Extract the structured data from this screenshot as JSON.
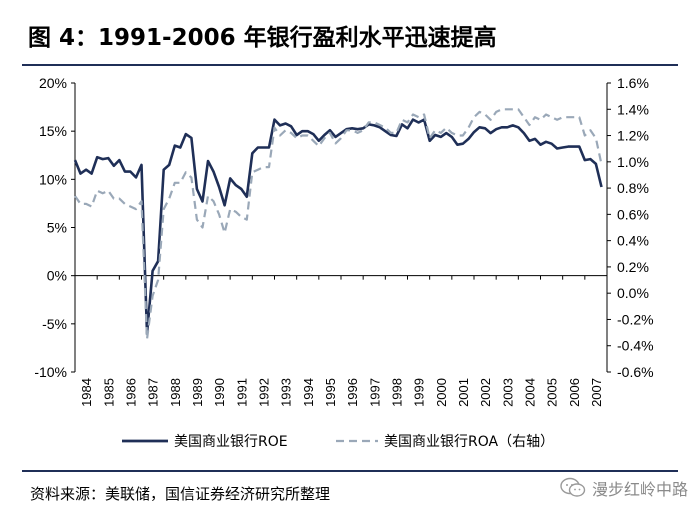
{
  "title": "图 4：1991-2006 年银行盈利水平迅速提高",
  "source": "资料来源：美联储，国信证券经济研究所整理",
  "watermark": "漫步红岭中路",
  "colors": {
    "roe": "#1f2f57",
    "roa": "#9aa8b8",
    "rule": "#1f2f57"
  },
  "chart_data": {
    "type": "line",
    "title": "",
    "x_label": "",
    "x_tick_labels": [
      "1984",
      "1985",
      "1986",
      "1987",
      "1988",
      "1989",
      "1990",
      "1991",
      "1992",
      "1993",
      "1994",
      "1995",
      "1996",
      "1997",
      "1998",
      "1999",
      "2000",
      "2001",
      "2002",
      "2003",
      "2004",
      "2005",
      "2006",
      "2007"
    ],
    "x_range": [
      1984,
      2008
    ],
    "y_left": {
      "range": [
        -10,
        20
      ],
      "step": 5,
      "tick_labels": [
        "20%",
        "15%",
        "10%",
        "5%",
        "0%",
        "-5%",
        "-10%"
      ]
    },
    "y_right": {
      "range": [
        -0.6,
        1.6
      ],
      "step": 0.2,
      "tick_labels": [
        "1.6%",
        "1.4%",
        "1.2%",
        "1.0%",
        "0.8%",
        "0.6%",
        "0.4%",
        "0.2%",
        "0.0%",
        "-0.2%",
        "-0.4%",
        "-0.6%"
      ]
    },
    "legend": {
      "position": "bottom"
    },
    "series": [
      {
        "name": "美国商业银行ROE",
        "axis": "left",
        "style": "solid",
        "x": [
          1984.0,
          1984.25,
          1984.5,
          1984.75,
          1985.0,
          1985.25,
          1985.5,
          1985.75,
          1986.0,
          1986.25,
          1986.5,
          1986.75,
          1987.0,
          1987.25,
          1987.5,
          1987.75,
          1988.0,
          1988.25,
          1988.5,
          1988.75,
          1989.0,
          1989.25,
          1989.5,
          1989.75,
          1990.0,
          1990.25,
          1990.5,
          1990.75,
          1991.0,
          1991.25,
          1991.5,
          1991.75,
          1992.0,
          1992.25,
          1992.5,
          1992.75,
          1993.0,
          1993.25,
          1993.5,
          1993.75,
          1994.0,
          1994.25,
          1994.5,
          1994.75,
          1995.0,
          1995.25,
          1995.5,
          1995.75,
          1996.0,
          1996.25,
          1996.5,
          1996.75,
          1997.0,
          1997.25,
          1997.5,
          1997.75,
          1998.0,
          1998.25,
          1998.5,
          1998.75,
          1999.0,
          1999.25,
          1999.5,
          1999.75,
          2000.0,
          2000.25,
          2000.5,
          2000.75,
          2001.0,
          2001.25,
          2001.5,
          2001.75,
          2002.0,
          2002.25,
          2002.5,
          2002.75,
          2003.0,
          2003.25,
          2003.5,
          2003.75,
          2004.0,
          2004.25,
          2004.5,
          2004.75,
          2005.0,
          2005.25,
          2005.5,
          2005.75,
          2006.0,
          2006.25,
          2006.5,
          2006.75,
          2007.0,
          2007.25,
          2007.5,
          2007.75
        ],
        "values": [
          12.0,
          10.6,
          11.0,
          10.6,
          12.3,
          12.1,
          12.2,
          11.4,
          12.0,
          10.8,
          10.8,
          10.2,
          11.5,
          -6.0,
          0.5,
          1.5,
          11.0,
          11.5,
          13.5,
          13.3,
          14.7,
          14.3,
          9.0,
          7.7,
          11.9,
          10.8,
          9.2,
          7.3,
          10.1,
          9.4,
          9.0,
          8.2,
          12.7,
          13.3,
          13.3,
          13.3,
          16.2,
          15.6,
          15.8,
          15.5,
          14.6,
          15.0,
          15.0,
          14.7,
          14.0,
          14.6,
          15.1,
          14.4,
          14.8,
          15.2,
          15.3,
          15.2,
          15.3,
          15.7,
          15.6,
          15.4,
          15.0,
          14.6,
          14.5,
          15.7,
          15.3,
          16.2,
          15.9,
          16.2,
          14.0,
          14.6,
          14.4,
          14.8,
          14.4,
          13.6,
          13.7,
          14.2,
          14.9,
          15.4,
          15.3,
          14.8,
          15.2,
          15.4,
          15.4,
          15.6,
          15.4,
          14.8,
          14.0,
          14.2,
          13.6,
          13.9,
          13.7,
          13.2,
          13.3,
          13.4,
          13.4,
          13.4,
          12.0,
          12.1,
          11.6,
          9.2
        ]
      },
      {
        "name": "美国商业银行ROA（右轴）",
        "axis": "right",
        "style": "dashed",
        "x": [
          1984.0,
          1984.25,
          1984.5,
          1984.75,
          1985.0,
          1985.25,
          1985.5,
          1985.75,
          1986.0,
          1986.25,
          1986.5,
          1986.75,
          1987.0,
          1987.25,
          1987.5,
          1987.75,
          1988.0,
          1988.25,
          1988.5,
          1988.75,
          1989.0,
          1989.25,
          1989.5,
          1989.75,
          1990.0,
          1990.25,
          1990.5,
          1990.75,
          1991.0,
          1991.25,
          1991.5,
          1991.75,
          1992.0,
          1992.25,
          1992.5,
          1992.75,
          1993.0,
          1993.25,
          1993.5,
          1993.75,
          1994.0,
          1994.25,
          1994.5,
          1994.75,
          1995.0,
          1995.25,
          1995.5,
          1995.75,
          1996.0,
          1996.25,
          1996.5,
          1996.75,
          1997.0,
          1997.25,
          1997.5,
          1997.75,
          1998.0,
          1998.25,
          1998.5,
          1998.75,
          1999.0,
          1999.25,
          1999.5,
          1999.75,
          2000.0,
          2000.25,
          2000.5,
          2000.75,
          2001.0,
          2001.25,
          2001.5,
          2001.75,
          2002.0,
          2002.25,
          2002.5,
          2002.75,
          2003.0,
          2003.25,
          2003.5,
          2003.75,
          2004.0,
          2004.25,
          2004.5,
          2004.75,
          2005.0,
          2005.25,
          2005.5,
          2005.75,
          2006.0,
          2006.25,
          2006.5,
          2006.75,
          2007.0,
          2007.25,
          2007.5,
          2007.75
        ],
        "values": [
          0.74,
          0.68,
          0.68,
          0.66,
          0.78,
          0.76,
          0.78,
          0.72,
          0.72,
          0.68,
          0.66,
          0.64,
          0.7,
          -0.35,
          -0.02,
          0.1,
          0.64,
          0.72,
          0.84,
          0.84,
          0.92,
          0.88,
          0.56,
          0.5,
          0.74,
          0.7,
          0.6,
          0.46,
          0.64,
          0.62,
          0.58,
          0.56,
          0.92,
          0.94,
          0.96,
          0.96,
          1.26,
          1.2,
          1.24,
          1.22,
          1.18,
          1.2,
          1.2,
          1.16,
          1.12,
          1.18,
          1.22,
          1.14,
          1.18,
          1.24,
          1.24,
          1.22,
          1.24,
          1.3,
          1.3,
          1.28,
          1.26,
          1.22,
          1.22,
          1.32,
          1.3,
          1.36,
          1.34,
          1.36,
          1.18,
          1.24,
          1.22,
          1.26,
          1.22,
          1.2,
          1.2,
          1.26,
          1.34,
          1.38,
          1.36,
          1.32,
          1.38,
          1.4,
          1.4,
          1.4,
          1.4,
          1.34,
          1.28,
          1.34,
          1.32,
          1.36,
          1.34,
          1.32,
          1.34,
          1.34,
          1.34,
          1.34,
          1.2,
          1.24,
          1.18,
          0.98
        ]
      }
    ]
  }
}
